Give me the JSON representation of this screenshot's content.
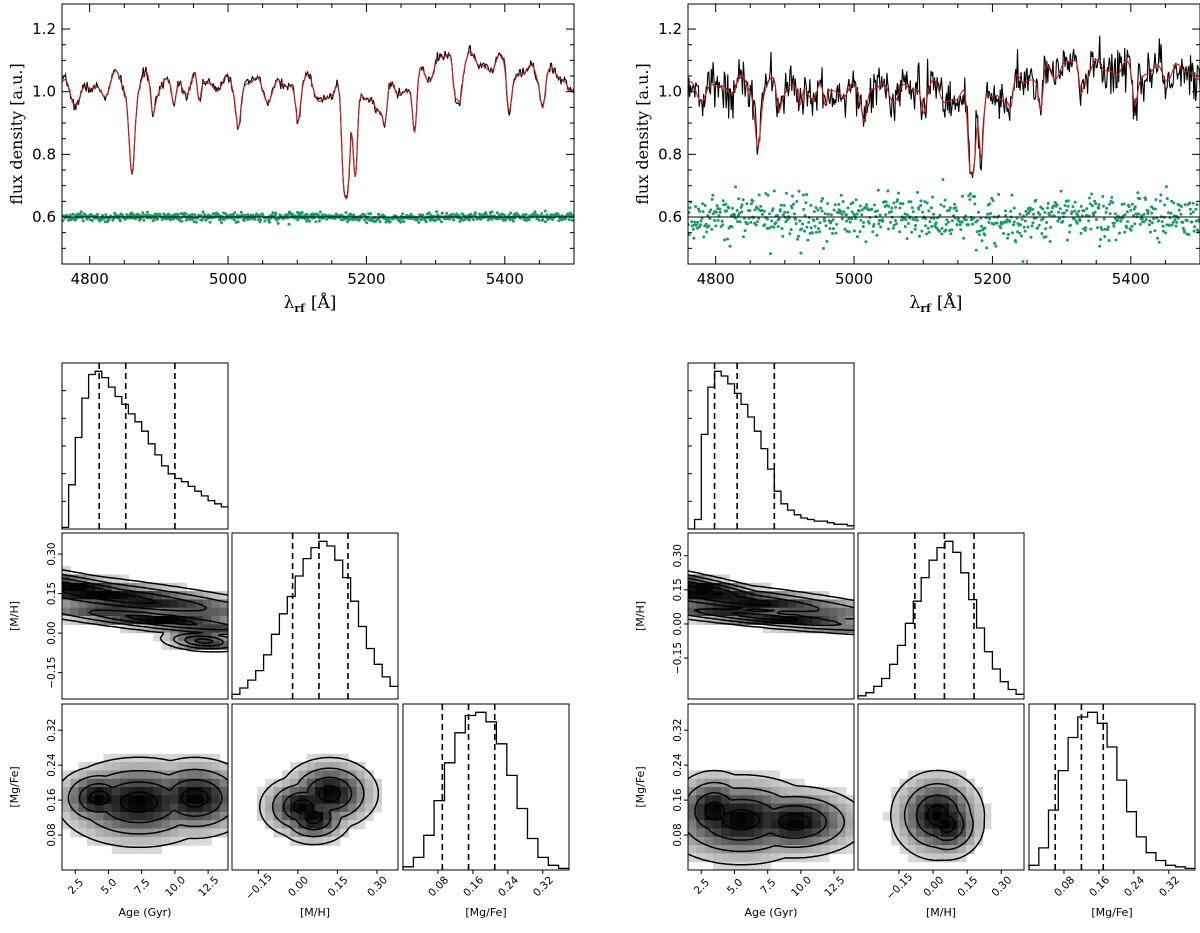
{
  "colors": {
    "observed": "#000000",
    "model": "#cc2222",
    "residual": "#1a9a66",
    "residual_line": "#000000",
    "density_dark": "#000000",
    "density_light": "#f2f2f2"
  },
  "chart_data": [
    {
      "id": "spectrum-left",
      "type": "line",
      "xlabel_main": "λ",
      "xlabel_sub": "rf",
      "xlabel_unit": "[Å]",
      "ylabel": "flux density [a.u.]",
      "xlim": [
        4760,
        5500
      ],
      "ylim": [
        0.45,
        1.28
      ],
      "xticks": [
        4800,
        5000,
        5200,
        5400
      ],
      "yticks": [
        0.6,
        0.8,
        1.0,
        1.2
      ],
      "ytick_labels": [
        "0.6",
        "0.8",
        "1.0",
        "1.2"
      ],
      "continuum": [
        [
          4760,
          1.0
        ],
        [
          4800,
          1.0
        ],
        [
          4850,
          1.03
        ],
        [
          4900,
          1.02
        ],
        [
          4950,
          1.04
        ],
        [
          5000,
          1.02
        ],
        [
          5050,
          1.01
        ],
        [
          5100,
          1.02
        ],
        [
          5150,
          0.99
        ],
        [
          5200,
          0.97
        ],
        [
          5250,
          1.0
        ],
        [
          5300,
          1.09
        ],
        [
          5350,
          1.1
        ],
        [
          5400,
          1.07
        ],
        [
          5450,
          1.05
        ],
        [
          5500,
          1.04
        ]
      ],
      "absorption_lines": [
        {
          "x": 4861,
          "depth": 0.27,
          "width": 4
        },
        {
          "x": 4891,
          "depth": 0.08,
          "width": 3
        },
        {
          "x": 4922,
          "depth": 0.08,
          "width": 3
        },
        {
          "x": 4958,
          "depth": 0.1,
          "width": 3
        },
        {
          "x": 5015,
          "depth": 0.1,
          "width": 3
        },
        {
          "x": 5101,
          "depth": 0.09,
          "width": 3
        },
        {
          "x": 5167,
          "depth": 0.26,
          "width": 3
        },
        {
          "x": 5173,
          "depth": 0.24,
          "width": 3
        },
        {
          "x": 5184,
          "depth": 0.26,
          "width": 3
        },
        {
          "x": 5227,
          "depth": 0.1,
          "width": 3
        },
        {
          "x": 5270,
          "depth": 0.17,
          "width": 3
        },
        {
          "x": 5328,
          "depth": 0.1,
          "width": 3
        },
        {
          "x": 5335,
          "depth": 0.08,
          "width": 3
        },
        {
          "x": 5406,
          "depth": 0.1,
          "width": 3
        },
        {
          "x": 5455,
          "depth": 0.07,
          "width": 3
        }
      ],
      "ripple_amplitude": 0.05,
      "observed_noise": 0.008,
      "residual_level": 0.6,
      "residual_scatter": 0.007,
      "residual_count": 750,
      "seed": 7
    },
    {
      "id": "spectrum-right",
      "type": "line",
      "xlabel_main": "λ",
      "xlabel_sub": "rf",
      "xlabel_unit": "[Å]",
      "ylabel": "flux density [a.u.]",
      "xlim": [
        4760,
        5500
      ],
      "ylim": [
        0.45,
        1.28
      ],
      "xticks": [
        4800,
        5000,
        5200,
        5400
      ],
      "yticks": [
        0.6,
        0.8,
        1.0,
        1.2
      ],
      "ytick_labels": [
        "0.6",
        "0.8",
        "1.0",
        "1.2"
      ],
      "continuum": [
        [
          4760,
          1.0
        ],
        [
          4800,
          1.01
        ],
        [
          4850,
          1.02
        ],
        [
          4900,
          1.01
        ],
        [
          4950,
          1.01
        ],
        [
          5000,
          1.0
        ],
        [
          5050,
          1.0
        ],
        [
          5100,
          1.01
        ],
        [
          5150,
          0.98
        ],
        [
          5200,
          0.98
        ],
        [
          5250,
          1.04
        ],
        [
          5300,
          1.08
        ],
        [
          5350,
          1.08
        ],
        [
          5400,
          1.06
        ],
        [
          5450,
          1.06
        ],
        [
          5500,
          1.07
        ]
      ],
      "absorption_lines": [
        {
          "x": 4861,
          "depth": 0.18,
          "width": 4
        },
        {
          "x": 4891,
          "depth": 0.06,
          "width": 3
        },
        {
          "x": 4922,
          "depth": 0.06,
          "width": 3
        },
        {
          "x": 4958,
          "depth": 0.08,
          "width": 3
        },
        {
          "x": 5015,
          "depth": 0.07,
          "width": 3
        },
        {
          "x": 5101,
          "depth": 0.06,
          "width": 3
        },
        {
          "x": 5167,
          "depth": 0.2,
          "width": 3
        },
        {
          "x": 5173,
          "depth": 0.18,
          "width": 3
        },
        {
          "x": 5184,
          "depth": 0.2,
          "width": 3
        },
        {
          "x": 5227,
          "depth": 0.07,
          "width": 3
        },
        {
          "x": 5270,
          "depth": 0.12,
          "width": 3
        },
        {
          "x": 5328,
          "depth": 0.08,
          "width": 3
        },
        {
          "x": 5406,
          "depth": 0.08,
          "width": 3
        }
      ],
      "ripple_amplitude": 0.04,
      "observed_noise": 0.035,
      "residual_level": 0.6,
      "residual_scatter": 0.035,
      "residual_count": 750,
      "seed": 13
    },
    {
      "id": "corner-left",
      "type": "heatmap",
      "params": [
        {
          "name": "Age (Gyr)",
          "range": [
            1.5,
            14.0
          ],
          "ticks": [
            2.5,
            5.0,
            7.5,
            10.0,
            12.5
          ],
          "tick_labels": [
            "2.5",
            "5.0",
            "7.5",
            "10.0",
            "12.5"
          ],
          "quantiles": [
            4.3,
            6.3,
            10.0
          ]
        },
        {
          "name": "[M/H]",
          "range": [
            -0.25,
            0.38
          ],
          "ticks": [
            -0.15,
            0.0,
            0.15,
            0.3
          ],
          "tick_labels": [
            "−0.15",
            "0.00",
            "0.15",
            "0.30"
          ],
          "quantiles": [
            -0.02,
            0.08,
            0.19
          ]
        },
        {
          "name": "[Mg/Fe]",
          "range": [
            0.0,
            0.38
          ],
          "ticks": [
            0.08,
            0.16,
            0.24,
            0.32
          ],
          "tick_labels": [
            "0.08",
            "0.16",
            "0.24",
            "0.32"
          ],
          "quantiles": [
            0.09,
            0.15,
            0.21
          ]
        }
      ],
      "diag_hists": [
        [
          1,
          28,
          58,
          83,
          98,
          100,
          96,
          90,
          84,
          79,
          73,
          68,
          62,
          54,
          47,
          40,
          35,
          32,
          30,
          27,
          24,
          21,
          18,
          16,
          14
        ],
        [
          3,
          7,
          12,
          18,
          28,
          41,
          54,
          65,
          78,
          89,
          96,
          100,
          97,
          88,
          77,
          62,
          46,
          32,
          22,
          14,
          8
        ],
        [
          2,
          8,
          22,
          44,
          68,
          87,
          98,
          100,
          94,
          80,
          60,
          39,
          20,
          8,
          3,
          1
        ]
      ],
      "pairs": [
        {
          "row": 1,
          "col": 0,
          "axes": [
            [
              3.0,
              0.17,
              7.0,
              0.07,
              0.92
            ],
            [
              5.0,
              0.14,
              8.0,
              0.06,
              0.82
            ],
            [
              9.0,
              0.05,
              6.0,
              0.04,
              0.82
            ],
            [
              12.2,
              -0.03,
              1.6,
              0.02,
              0.25
            ]
          ]
        },
        {
          "row": 2,
          "col": 0,
          "axes": [
            [
              4.3,
              0.165,
              1.6,
              0.035,
              0.0
            ],
            [
              7.3,
              0.155,
              3.0,
              0.05,
              0.0
            ],
            [
              11.5,
              0.165,
              2.2,
              0.045,
              0.0
            ]
          ]
        },
        {
          "row": 2,
          "col": 1,
          "axes": [
            [
              0.02,
              0.145,
              0.08,
              0.035,
              0.0
            ],
            [
              0.12,
              0.175,
              0.09,
              0.04,
              0.0
            ],
            [
              0.06,
              0.12,
              0.07,
              0.03,
              0.0
            ]
          ]
        }
      ]
    },
    {
      "id": "corner-right",
      "type": "heatmap",
      "params": [
        {
          "name": "Age (Gyr)",
          "range": [
            1.5,
            14.0
          ],
          "ticks": [
            2.5,
            5.0,
            7.5,
            10.0,
            12.5
          ],
          "tick_labels": [
            "2.5",
            "5.0",
            "7.5",
            "10.0",
            "12.5"
          ],
          "quantiles": [
            3.5,
            5.2,
            8.0
          ]
        },
        {
          "name": "[M/H]",
          "range": [
            -0.33,
            0.4
          ],
          "ticks": [
            -0.15,
            0.0,
            0.15,
            0.3
          ],
          "tick_labels": [
            "−0.15",
            "0.00",
            "0.15",
            "0.30"
          ],
          "quantiles": [
            -0.08,
            0.05,
            0.18
          ]
        },
        {
          "name": "[Mg/Fe]",
          "range": [
            0.0,
            0.38
          ],
          "ticks": [
            0.08,
            0.16,
            0.24,
            0.32
          ],
          "tick_labels": [
            "0.08",
            "0.16",
            "0.24",
            "0.32"
          ],
          "quantiles": [
            0.06,
            0.12,
            0.17
          ]
        }
      ],
      "diag_hists": [
        [
          0,
          6,
          60,
          90,
          100,
          97,
          92,
          86,
          79,
          71,
          62,
          51,
          38,
          24,
          16,
          12,
          9,
          7,
          6,
          5,
          5,
          4,
          3,
          3,
          2
        ],
        [
          2,
          4,
          8,
          13,
          22,
          34,
          48,
          62,
          77,
          88,
          96,
          100,
          93,
          80,
          63,
          45,
          30,
          19,
          11,
          6,
          3
        ],
        [
          3,
          14,
          38,
          63,
          84,
          97,
          100,
          93,
          78,
          57,
          37,
          21,
          11,
          6,
          3,
          2,
          1
        ]
      ],
      "pairs": [
        {
          "row": 1,
          "col": 0,
          "axes": [
            [
              2.8,
              0.16,
              5.0,
              0.07,
              0.92
            ],
            [
              4.5,
              0.11,
              7.5,
              0.06,
              0.82
            ],
            [
              7.5,
              0.03,
              6.0,
              0.04,
              0.82
            ]
          ]
        },
        {
          "row": 2,
          "col": 0,
          "axes": [
            [
              3.5,
              0.135,
              1.6,
              0.045,
              0.0
            ],
            [
              5.5,
              0.115,
              3.0,
              0.05,
              0.0
            ],
            [
              9.5,
              0.11,
              2.6,
              0.04,
              0.0
            ]
          ]
        },
        {
          "row": 2,
          "col": 1,
          "axes": [
            [
              0.06,
              0.105,
              0.08,
              0.04,
              0.0
            ],
            [
              0.02,
              0.125,
              0.1,
              0.05,
              0.0
            ]
          ]
        }
      ]
    }
  ]
}
